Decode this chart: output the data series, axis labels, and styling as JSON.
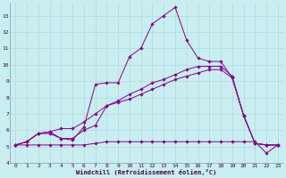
{
  "background_color": "#c8eef0",
  "grid_color": "#b0d8dc",
  "line_color": "#880088",
  "marker_color": "#880088",
  "xlabel": "Windchill (Refroidissement éolien,°C)",
  "xlim": [
    -0.5,
    23.5
  ],
  "ylim": [
    4,
    13.8
  ],
  "xticks": [
    0,
    1,
    2,
    3,
    4,
    5,
    6,
    7,
    8,
    9,
    10,
    11,
    12,
    13,
    14,
    15,
    16,
    17,
    18,
    19,
    20,
    21,
    22,
    23
  ],
  "yticks": [
    4,
    5,
    6,
    7,
    8,
    9,
    10,
    11,
    12,
    13
  ],
  "series": [
    [
      5.1,
      5.3,
      5.8,
      5.9,
      5.5,
      5.4,
      6.2,
      8.8,
      8.9,
      8.9,
      10.5,
      11.0,
      12.5,
      13.0,
      13.5,
      11.5,
      10.4,
      10.2,
      10.2,
      9.2,
      6.9,
      5.2,
      5.1,
      5.1
    ],
    [
      5.1,
      5.3,
      5.8,
      5.9,
      6.1,
      6.1,
      6.5,
      7.0,
      7.5,
      7.8,
      8.2,
      8.5,
      8.9,
      9.1,
      9.4,
      9.7,
      9.9,
      9.9,
      9.9,
      9.3,
      6.9,
      5.2,
      5.1,
      5.1
    ],
    [
      5.1,
      5.1,
      5.1,
      5.1,
      5.1,
      5.1,
      5.1,
      5.2,
      5.3,
      5.3,
      5.3,
      5.3,
      5.3,
      5.3,
      5.3,
      5.3,
      5.3,
      5.3,
      5.3,
      5.3,
      5.3,
      5.3,
      4.6,
      5.1
    ],
    [
      5.1,
      5.3,
      5.8,
      5.8,
      5.5,
      5.5,
      6.0,
      6.3,
      7.5,
      7.7,
      7.9,
      8.2,
      8.5,
      8.8,
      9.1,
      9.3,
      9.5,
      9.7,
      9.7,
      9.2,
      6.9,
      5.2,
      5.1,
      5.1
    ]
  ]
}
